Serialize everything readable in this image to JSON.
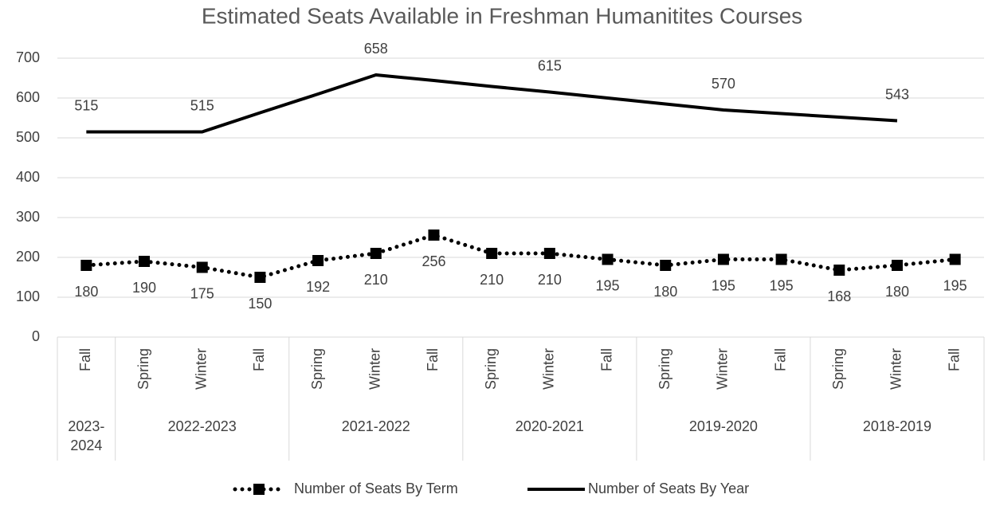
{
  "chart_data": {
    "type": "line",
    "title": "Estimated Seats Available in Freshman Humanitites Courses",
    "categories": [
      "Fall",
      "Spring",
      "Winter",
      "Fall",
      "Spring",
      "Winter",
      "Fall",
      "Spring",
      "Winter",
      "Fall",
      "Spring",
      "Winter",
      "Fall",
      "Spring",
      "Winter",
      "Fall"
    ],
    "groups": [
      {
        "label": "2023-2024",
        "count": 1
      },
      {
        "label": "2022-2023",
        "count": 3
      },
      {
        "label": "2021-2022",
        "count": 3
      },
      {
        "label": "2020-2021",
        "count": 3
      },
      {
        "label": "2019-2020",
        "count": 3
      },
      {
        "label": "2018-2019",
        "count": 3
      }
    ],
    "series": [
      {
        "name": "Number of Seats By Term",
        "color": "#000000",
        "style": "dotted",
        "marker": "square",
        "values": [
          180,
          190,
          175,
          150,
          192,
          210,
          256,
          210,
          210,
          195,
          180,
          195,
          195,
          168,
          180,
          195
        ]
      },
      {
        "name": "Number of Seats By Year",
        "color": "#000000",
        "style": "solid",
        "values": [
          515,
          515,
          515,
          563,
          610,
          658,
          644,
          629,
          615,
          600,
          585,
          570,
          561,
          552,
          543,
          null
        ],
        "value_labels": [
          "515",
          null,
          "515",
          null,
          null,
          "658",
          null,
          null,
          "615",
          null,
          null,
          "570",
          null,
          null,
          "543",
          null
        ]
      }
    ],
    "ylim": [
      0,
      700
    ],
    "yticks": [
      0,
      100,
      200,
      300,
      400,
      500,
      600,
      700
    ],
    "grid": true,
    "legend": "bottom"
  }
}
